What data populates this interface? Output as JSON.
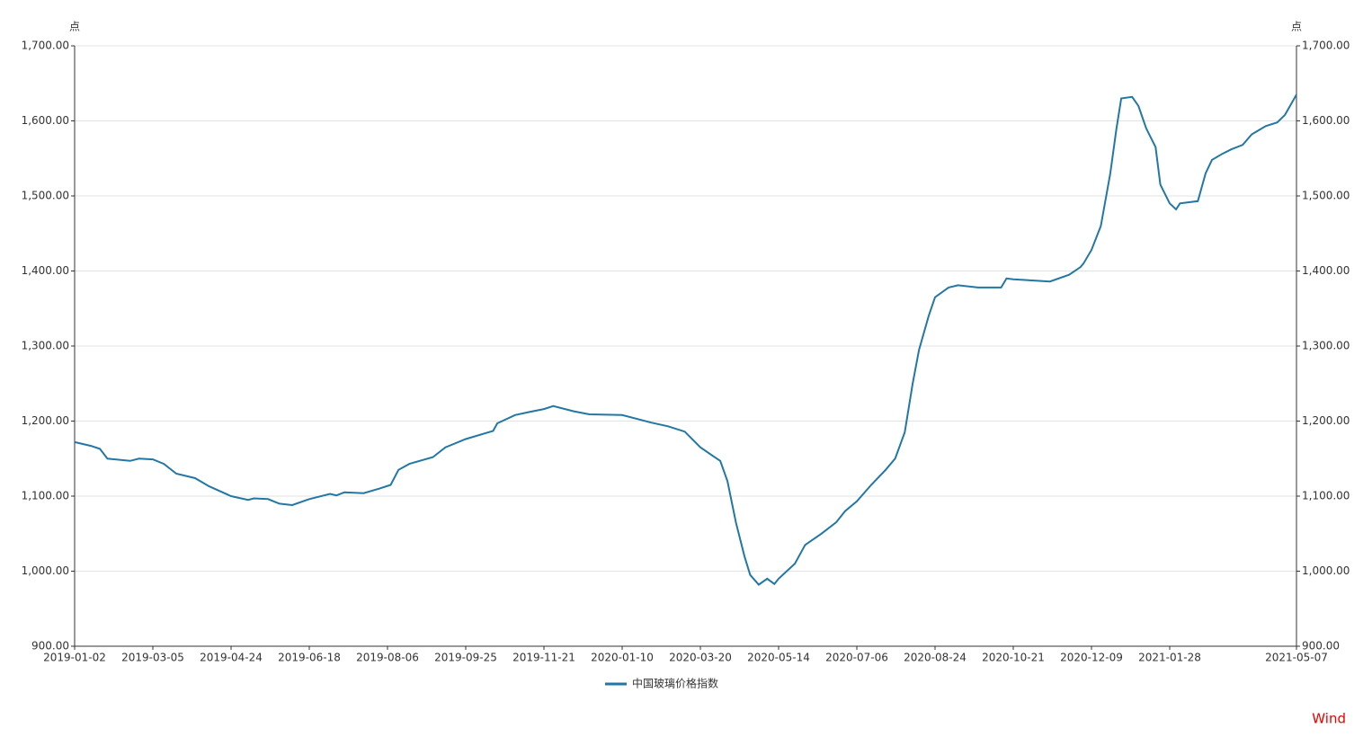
{
  "chart_data": {
    "type": "line",
    "ylabel": "点",
    "y2label": "点",
    "source": "Wind",
    "x": [
      "2019-01-02",
      "2019-01-15",
      "2019-01-22",
      "2019-01-28",
      "2019-02-15",
      "2019-02-22",
      "2019-03-05",
      "2019-03-12",
      "2019-03-20",
      "2019-04-01",
      "2019-04-10",
      "2019-04-24",
      "2019-05-06",
      "2019-05-10",
      "2019-05-20",
      "2019-05-28",
      "2019-06-06",
      "2019-06-18",
      "2019-07-01",
      "2019-07-05",
      "2019-07-10",
      "2019-07-22",
      "2019-08-01",
      "2019-08-08",
      "2019-08-13",
      "2019-08-20",
      "2019-09-04",
      "2019-09-12",
      "2019-09-25",
      "2019-10-15",
      "2019-10-18",
      "2019-10-31",
      "2019-11-10",
      "2019-11-21",
      "2019-11-27",
      "2019-12-10",
      "2019-12-20",
      "2020-01-10",
      "2020-02-05",
      "2020-02-20",
      "2020-03-06",
      "2020-03-20",
      "2020-03-30",
      "2020-04-03",
      "2020-04-08",
      "2020-04-14",
      "2020-04-20",
      "2020-04-24",
      "2020-04-30",
      "2020-05-06",
      "2020-05-11",
      "2020-05-14",
      "2020-05-25",
      "2020-06-01",
      "2020-06-12",
      "2020-06-22",
      "2020-06-28",
      "2020-07-06",
      "2020-07-15",
      "2020-07-24",
      "2020-07-30",
      "2020-08-05",
      "2020-08-10",
      "2020-08-14",
      "2020-08-20",
      "2020-08-24",
      "2020-09-03",
      "2020-09-10",
      "2020-09-25",
      "2020-10-12",
      "2020-10-16",
      "2020-10-21",
      "2020-11-05",
      "2020-11-13",
      "2020-11-25",
      "2020-12-02",
      "2020-12-04",
      "2020-12-09",
      "2020-12-15",
      "2020-12-21",
      "2020-12-25",
      "2020-12-28",
      "2021-01-04",
      "2021-01-08",
      "2021-01-13",
      "2021-01-19",
      "2021-01-22",
      "2021-01-28",
      "2021-02-02",
      "2021-02-05",
      "2021-02-19",
      "2021-02-25",
      "2021-03-02",
      "2021-03-10",
      "2021-03-17",
      "2021-03-26",
      "2021-04-02",
      "2021-04-13",
      "2021-04-22",
      "2021-04-28",
      "2021-05-06",
      "2021-05-07"
    ],
    "series": [
      {
        "name": "中国玻璃价格指数",
        "color": "#2277a5",
        "values": [
          1172,
          1167,
          1163,
          1150,
          1147,
          1150,
          1149,
          1143,
          1130,
          1124,
          1113,
          1100,
          1095,
          1097,
          1096,
          1090,
          1088,
          1096,
          1103,
          1101,
          1105,
          1104,
          1110,
          1115,
          1135,
          1143,
          1152,
          1165,
          1176,
          1187,
          1197,
          1208,
          1212,
          1216,
          1220,
          1213,
          1209,
          1208,
          1198,
          1193,
          1186,
          1165,
          1152,
          1147,
          1120,
          1065,
          1020,
          995,
          982,
          990,
          983,
          990,
          1010,
          1035,
          1050,
          1065,
          1080,
          1093,
          1115,
          1135,
          1150,
          1185,
          1250,
          1295,
          1340,
          1365,
          1378,
          1381,
          1378,
          1378,
          1390,
          1389,
          1387,
          1386,
          1395,
          1405,
          1410,
          1428,
          1460,
          1530,
          1590,
          1630,
          1632,
          1620,
          1590,
          1565,
          1515,
          1490,
          1482,
          1490,
          1493,
          1530,
          1548,
          1556,
          1562,
          1568,
          1582,
          1593,
          1598,
          1608,
          1632,
          1635
        ]
      }
    ],
    "xlim": [
      "2019-01-02",
      "2021-05-07"
    ],
    "xticks": [
      "2019-01-02",
      "2019-03-05",
      "2019-04-24",
      "2019-06-18",
      "2019-08-06",
      "2019-09-25",
      "2019-11-21",
      "2020-01-10",
      "2020-03-20",
      "2020-05-14",
      "2020-07-06",
      "2020-08-24",
      "2020-10-21",
      "2020-12-09",
      "2021-01-28",
      "2021-05-07"
    ],
    "ylim": [
      900,
      1700
    ],
    "yticks": [
      {
        "value": 900,
        "label": "900.00"
      },
      {
        "value": 1000,
        "label": "1,000.00"
      },
      {
        "value": 1100,
        "label": "1,100.00"
      },
      {
        "value": 1200,
        "label": "1,200.00"
      },
      {
        "value": 1300,
        "label": "1,300.00"
      },
      {
        "value": 1400,
        "label": "1,400.00"
      },
      {
        "value": 1500,
        "label": "1,500.00"
      },
      {
        "value": 1600,
        "label": "1,600.00"
      },
      {
        "value": 1700,
        "label": "1,700.00"
      }
    ],
    "y2lim": [
      900,
      1700
    ],
    "y2ticks": [
      {
        "value": 900,
        "label": "900.00"
      },
      {
        "value": 1000,
        "label": "1,000.00"
      },
      {
        "value": 1100,
        "label": "1,100.00"
      },
      {
        "value": 1200,
        "label": "1,200.00"
      },
      {
        "value": 1300,
        "label": "1,300.00"
      },
      {
        "value": 1400,
        "label": "1,400.00"
      },
      {
        "value": 1500,
        "label": "1,500.00"
      },
      {
        "value": 1600,
        "label": "1,600.00"
      },
      {
        "value": 1700,
        "label": "1,700.00"
      }
    ],
    "grid": true
  }
}
